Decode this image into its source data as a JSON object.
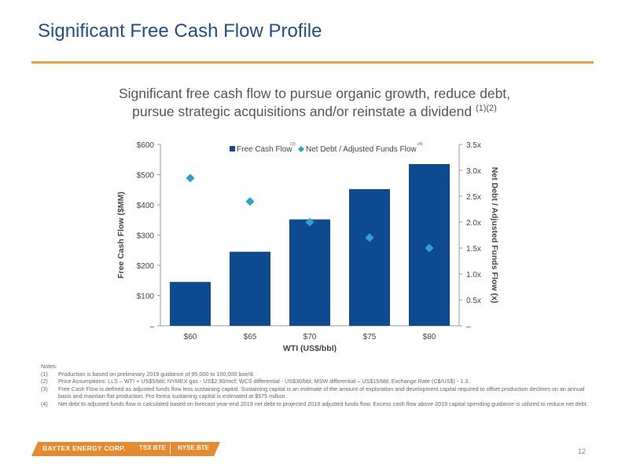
{
  "title": "Significant Free Cash Flow Profile",
  "subtitle": {
    "line1": "Significant free cash flow to pursue organic growth, reduce debt,",
    "line2": "pursue strategic acquisitions and/or reinstate a dividend",
    "refs": "(1)(2)"
  },
  "colors": {
    "accent": "#e8a33c",
    "title": "#1f4e8c",
    "bar": "#0d4a8f",
    "diamond": "#2aa4cf",
    "footer": "#e8892e"
  },
  "chart_data": {
    "type": "bar",
    "categories": [
      "$60",
      "$65",
      "$70",
      "$75",
      "$80"
    ],
    "xlabel": "WTI (US$/bbl)",
    "series": [
      {
        "name": "Free Cash Flow",
        "note_ref": "(3)",
        "axis": "left",
        "kind": "bar",
        "values": [
          145,
          245,
          352,
          452,
          535
        ]
      },
      {
        "name": "Net Debt / Adjusted Funds Flow",
        "note_ref": "(4)",
        "axis": "right",
        "kind": "diamond",
        "values": [
          2.85,
          2.4,
          2.0,
          1.7,
          1.5
        ]
      }
    ],
    "y_left": {
      "label": "Free Cash Flow ($MM)",
      "ylim": [
        0,
        600
      ],
      "ticks": [
        0,
        100,
        200,
        300,
        400,
        500,
        600
      ],
      "tick_labels": [
        "–",
        "$100",
        "$200",
        "$300",
        "$400",
        "$500",
        "$600"
      ]
    },
    "y_right": {
      "label": "Net Debt / Adjusted Funds Flow (x)",
      "ylim": [
        0,
        3.5
      ],
      "ticks": [
        0,
        0.5,
        1.0,
        1.5,
        2.0,
        2.5,
        3.0,
        3.5
      ],
      "tick_labels": [
        "–",
        "0.5x",
        "1.0x",
        "1.5x",
        "2.0x",
        "2.5x",
        "3.0x",
        "3.5x"
      ]
    },
    "legend_position": "top",
    "grid": false
  },
  "notes": {
    "heading": "Notes:",
    "items": [
      {
        "num": "(1)",
        "text": "Production is based on preliminary 2019 guidance of 95,000 to 100,000 boe/d."
      },
      {
        "num": "(2)",
        "text": "Price Assumptions: LLS – WTI + US$5/bbl; NYMEX gas - US$2.90/mcf; WCS differential - US$30/bbl; MSW differential – US$15/bbl; Exchange Rate (C$/US$) - 1.3."
      },
      {
        "num": "(3)",
        "text": "Free Cash Flow is defined as adjusted funds flow less sustaining capital. Sustaining capital is an estimate of the amount of exploration and development capital required to offset production declines on an annual basis and maintain flat production.  Pro forma sustaining capital is estimated at $575 million."
      },
      {
        "num": "(4)",
        "text": "Net debt to adjusted funds flow is calculated based on forecast year-end 2019 net debt to projected 2019 adjusted funds flow. Excess cash flow above 2019 capital spending guidance is utilized to reduce net debt."
      }
    ]
  },
  "footer": {
    "company": "BAYTEX ENERGY CORP.",
    "tsx": "TSX BTE",
    "nyse": "NYSE BTE"
  },
  "page_number": "12"
}
